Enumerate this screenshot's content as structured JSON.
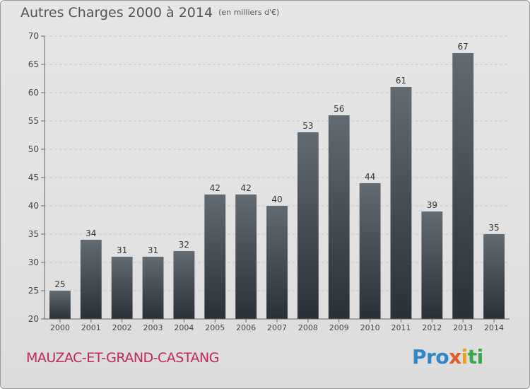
{
  "header": {
    "title": "Autres Charges 2000 à 2014",
    "subtitle": "(en milliers d'€)"
  },
  "footer": {
    "commune": "MAUZAC-ET-GRAND-CASTANG",
    "logo_parts": [
      "Pro",
      "x",
      "i",
      "ti"
    ]
  },
  "colors": {
    "bar_top": "#626a72",
    "bar_bottom": "#2a3038",
    "commune": "#c0285a",
    "grid": "#c8c8c8"
  },
  "chart_data": {
    "type": "bar",
    "title": "Autres Charges 2000 à 2014",
    "subtitle": "(en milliers d'€)",
    "categories": [
      "2000",
      "2001",
      "2002",
      "2003",
      "2004",
      "2005",
      "2006",
      "2007",
      "2008",
      "2009",
      "2010",
      "2011",
      "2012",
      "2013",
      "2014"
    ],
    "values": [
      25,
      34,
      31,
      31,
      32,
      42,
      42,
      40,
      53,
      56,
      44,
      61,
      39,
      67,
      35
    ],
    "ylim": [
      20,
      70
    ],
    "yticks": [
      20,
      25,
      30,
      35,
      40,
      45,
      50,
      55,
      60,
      65,
      70
    ],
    "grid": true,
    "data_labels": true
  }
}
